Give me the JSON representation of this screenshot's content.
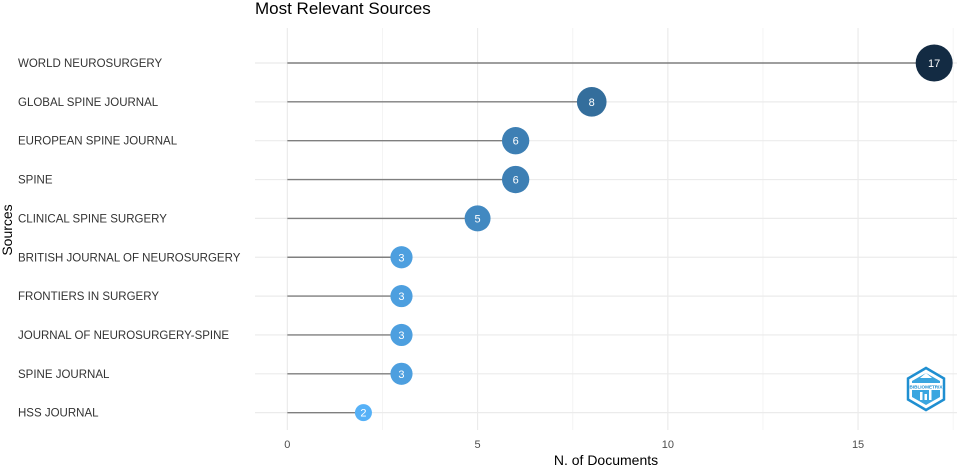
{
  "chart_data": {
    "type": "scatter",
    "title": "Most Relevant Sources",
    "xlabel": "N. of Documents",
    "ylabel": "Sources",
    "categories": [
      "WORLD NEUROSURGERY",
      "GLOBAL SPINE JOURNAL",
      "EUROPEAN SPINE JOURNAL",
      "SPINE",
      "CLINICAL SPINE SURGERY",
      "BRITISH JOURNAL OF NEUROSURGERY",
      "FRONTIERS IN SURGERY",
      "JOURNAL OF NEUROSURGERY-SPINE",
      "SPINE JOURNAL",
      "HSS JOURNAL"
    ],
    "values": [
      17,
      8,
      6,
      6,
      5,
      3,
      3,
      3,
      3,
      2
    ],
    "xticks": [
      0,
      5,
      10,
      15
    ],
    "xlim": [
      -0.85,
      17.6
    ],
    "grid": true,
    "colors": {
      "high": "#132b43",
      "low": "#56b1f7",
      "stem": "#7f7f7f",
      "grid": "#ebebeb"
    }
  },
  "logo": {
    "name": "bibliometrix-logo",
    "text": "BIBLIOMETRIX"
  }
}
